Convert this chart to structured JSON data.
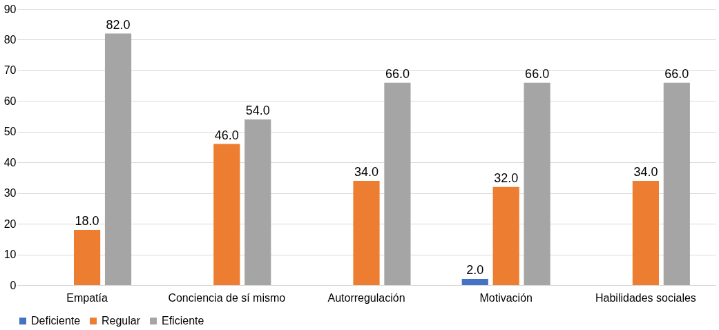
{
  "chart_data": {
    "type": "bar",
    "categories": [
      "Empatía",
      "Conciencia de sí mismo",
      "Autorregulación",
      "Motivación",
      "Habilidades sociales"
    ],
    "series": [
      {
        "name": "Deficiente",
        "color": "#4472c4",
        "values": [
          0,
          0,
          0,
          2,
          0
        ],
        "value_labels": [
          null,
          null,
          null,
          "2.0",
          null
        ]
      },
      {
        "name": "Regular",
        "color": "#ed7d31",
        "values": [
          18,
          46,
          34,
          32,
          34
        ],
        "value_labels": [
          "18.0",
          "46.0",
          "34.0",
          "32.0",
          "34.0"
        ]
      },
      {
        "name": "Eficiente",
        "color": "#a5a5a5",
        "values": [
          82,
          54,
          66,
          66,
          66
        ],
        "value_labels": [
          "82.0",
          "54.0",
          "66.0",
          "66.0",
          "66.0"
        ]
      }
    ],
    "ylim": [
      0,
      90
    ],
    "yticks": [
      0,
      10,
      20,
      30,
      40,
      50,
      60,
      70,
      80,
      90
    ],
    "grid": "y",
    "legend": "bottom"
  }
}
